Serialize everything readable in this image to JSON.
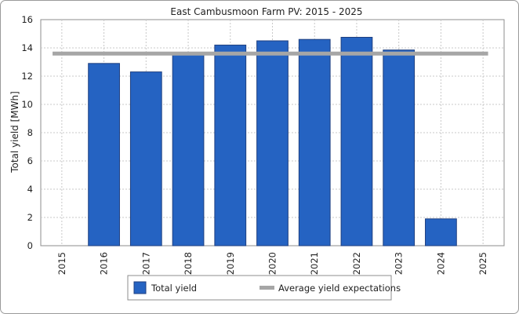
{
  "chart_data": {
    "type": "bar",
    "title": "East Cambusmoon Farm PV: 2015 - 2025",
    "xlabel": "",
    "ylabel": "Total yield [MWh]",
    "ylim": [
      0,
      16
    ],
    "yticks": [
      "0",
      "2",
      "4",
      "6",
      "8",
      "10",
      "12",
      "14",
      "16"
    ],
    "categories": [
      "2015",
      "2016",
      "2017",
      "2018",
      "2019",
      "2020",
      "2021",
      "2022",
      "2023",
      "2024",
      "2025"
    ],
    "series": [
      {
        "name": "Total yield",
        "type": "bar",
        "color": "#2563c2",
        "values": [
          null,
          12.9,
          12.3,
          13.5,
          14.2,
          14.5,
          14.6,
          14.75,
          13.85,
          1.9,
          null
        ]
      },
      {
        "name": "Average yield expectations",
        "type": "line",
        "color": "#a6a6a6",
        "values": [
          13.6,
          13.6,
          13.6,
          13.6,
          13.6,
          13.6,
          13.6,
          13.6,
          13.6,
          13.6,
          13.6
        ]
      }
    ],
    "grid": true,
    "legend": "bottom-center"
  }
}
